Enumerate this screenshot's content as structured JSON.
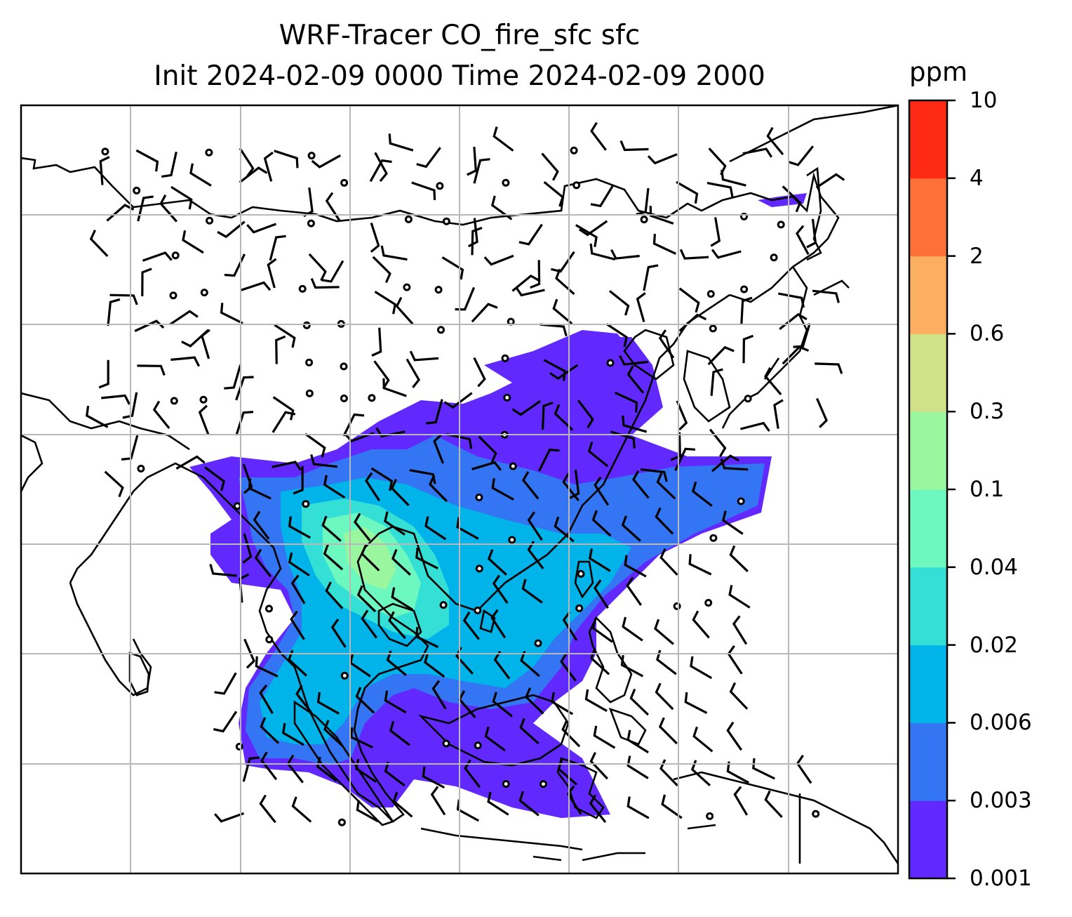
{
  "title": {
    "line1": "WRF-Tracer CO_fire_sfc sfc",
    "line2": "Init 2024-02-09 0000 Time 2024-02-09 2000"
  },
  "colorbar": {
    "unit": "ppm",
    "levels": [
      "0.001",
      "0.003",
      "0.006",
      "0.02",
      "0.04",
      "0.1",
      "0.3",
      "0.6",
      "2",
      "4",
      "10"
    ],
    "colors": [
      "#6229ff",
      "#3375f2",
      "#00b3e8",
      "#34dfd6",
      "#6cf8bf",
      "#9af79f",
      "#d0e188",
      "#fdaf61",
      "#ff7139",
      "#ff2a13"
    ]
  },
  "map": {
    "projection_grid": "lat-lon gridlines",
    "features": [
      "coastlines",
      "wind-barbs",
      "calm-circles",
      "tracer-contours"
    ]
  }
}
